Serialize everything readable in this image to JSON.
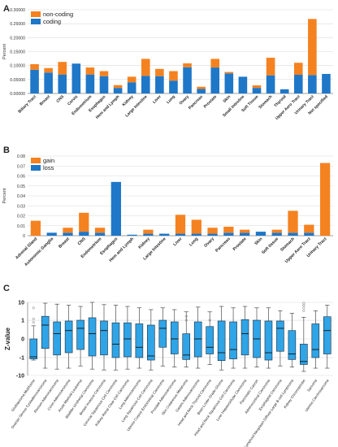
{
  "panels": [
    {
      "letter": "A"
    },
    {
      "letter": "B"
    },
    {
      "letter": "C"
    }
  ],
  "colors": {
    "orange": "#f58220",
    "blue": "#1f77c8",
    "box": "#2fa4e7",
    "axis": "#888888",
    "grid": "#d9d9d9"
  },
  "chart_data": [
    {
      "type": "bar",
      "stacked": true,
      "ylabel": "Percent",
      "ylim": [
        0,
        0.3
      ],
      "yticks": [
        "0.00000",
        "0.05000",
        "0.10000",
        "0.15000",
        "0.20000",
        "0.25000",
        "0.30000"
      ],
      "legend_position": "top-left",
      "grid": true,
      "categories": [
        "Biliary Tract",
        "Breast",
        "CNS",
        "Cervix",
        "Endometrium",
        "Esophagus",
        "Hem and Lymph",
        "Kidney",
        "Large Intestine",
        "Liver",
        "Lung",
        "Ovary",
        "Pancreas",
        "Prostate",
        "Skin",
        "Small Intestine",
        "Soft Tissue",
        "Stomach",
        "Thyroid",
        "Upper Aero Tract",
        "Urinary Tract",
        "Not specified"
      ],
      "series": [
        {
          "name": "coding",
          "color": "#1f77c8",
          "values": [
            0.085,
            0.075,
            0.068,
            0.107,
            0.068,
            0.062,
            0.02,
            0.04,
            0.063,
            0.062,
            0.046,
            0.094,
            0.016,
            0.093,
            0.072,
            0.06,
            0.02,
            0.065,
            0.015,
            0.067,
            0.066,
            0.07
          ]
        },
        {
          "name": "non-coding",
          "color": "#f58220",
          "values": [
            0.02,
            0.016,
            0.045,
            0.0,
            0.025,
            0.018,
            0.01,
            0.02,
            0.061,
            0.026,
            0.034,
            0.014,
            0.008,
            0.031,
            0.005,
            0.0,
            0.009,
            0.063,
            0.0,
            0.043,
            0.201,
            0.0
          ]
        }
      ]
    },
    {
      "type": "bar",
      "stacked": true,
      "ylabel": "Percent",
      "ylim": [
        0,
        0.08
      ],
      "yticks": [
        "0",
        "0.005",
        "0.01",
        "0.015",
        "0.02",
        "0.025",
        "0.03",
        "0.035",
        "0.04",
        "0.045",
        "0.05",
        "0.055",
        "0.06",
        "0.065",
        "0.07",
        "0.075",
        "0.08"
      ],
      "yticks_shown": [
        "0",
        "0.01",
        "0.02",
        "0.03",
        "0.04",
        "0.05",
        "0.06",
        "0.07",
        "0.08"
      ],
      "legend_position": "top-left",
      "grid": true,
      "categories": [
        "Adrenal Gland",
        "Autonomic Ganglia",
        "Breast",
        "CNS",
        "Endometrium",
        "Esophagus",
        "Hem and Lymph",
        "Kidney",
        "Large Intestine",
        "Liver",
        "Lung",
        "Ovary",
        "Pancreas",
        "Prostate",
        "Skin",
        "Soft tissue",
        "Stomach",
        "Upper Aero Tract",
        "Urinary Tract"
      ],
      "series": [
        {
          "name": "loss",
          "color": "#1f77c8",
          "values": [
            0.0,
            0.003,
            0.003,
            0.004,
            0.003,
            0.054,
            0.001,
            0.002,
            0.002,
            0.002,
            0.002,
            0.002,
            0.003,
            0.003,
            0.004,
            0.003,
            0.003,
            0.003,
            0.0
          ]
        },
        {
          "name": "gain",
          "color": "#f58220",
          "values": [
            0.015,
            0.0,
            0.005,
            0.019,
            0.005,
            0.0,
            0.0,
            0.004,
            0.0,
            0.019,
            0.014,
            0.006,
            0.006,
            0.003,
            0.0,
            0.003,
            0.022,
            0.008,
            0.073
          ]
        }
      ]
    },
    {
      "type": "boxplot",
      "ylabel": "Z-value",
      "yscale": "symlog",
      "yticks": [
        "10",
        "1",
        "0",
        "-1",
        "-10"
      ],
      "ytick_values": [
        10,
        1,
        0,
        -1,
        -10
      ],
      "ylim": [
        -10,
        10
      ],
      "grid": true,
      "categories": [
        "Glioblastoma Multiforme",
        "Ovarian Serous Cystadenocarcinoma",
        "Rectum Adenocarcinoma",
        "Colon Adenocarcinoma",
        "Acute Myeloid Leukemia",
        "Bladder Urothelial Carcinoma",
        "Breast Invasive Carcinoma",
        "Cervical Squamous Cell Carcinoma",
        "Kidney Renal Clear Cell Carcinoma",
        "Lung Adenocarcinoma",
        "Lung Squamous Cell Carcinoma",
        "Uterine Corpus Endometrial Carcinoma",
        "Prostate Adenocarcinoma",
        "Skin Cutaneous Melanoma",
        "Gastric Adenocarcinoma",
        "Head and Neck Thyroid Carcinoma",
        "Brain Lower Grade Glioma",
        "Head and Neck Squamous Cell Carcinoma",
        "Liver Hepatocellular Carcinoma",
        "Pancreatic Cancer",
        "Adrenocortical Carcinoma",
        "Esophageal Carcinoma",
        "Lymphoid Neoplasm Diffuse Large B-cell Lymphoma",
        "Kidney Chromophobe",
        "Sarcoma",
        "Uterine Carcinosarcoma"
      ],
      "boxes": [
        {
          "min": -1.4,
          "q1": -1.2,
          "median": -0.9,
          "q3": 0.0,
          "max": 0.45,
          "outliers": [
            0.75,
            1.2,
            5.0
          ]
        },
        {
          "min": -4.0,
          "q1": -0.25,
          "median": 0.5,
          "q3": 1.7,
          "max": 9.0,
          "outliers": []
        },
        {
          "min": -4.5,
          "q1": -0.7,
          "median": 0.1,
          "q3": 0.8,
          "max": 8.0,
          "outliers": []
        },
        {
          "min": -4.0,
          "q1": -0.5,
          "median": 0.2,
          "q3": 0.9,
          "max": 7.0,
          "outliers": []
        },
        {
          "min": -3.0,
          "q1": -0.3,
          "median": 0.3,
          "q3": 1.0,
          "max": 6.0,
          "outliers": []
        },
        {
          "min": -4.5,
          "q1": -0.8,
          "median": 0.1,
          "q3": 1.4,
          "max": 10.0,
          "outliers": []
        },
        {
          "min": -5.0,
          "q1": -0.7,
          "median": 0.2,
          "q3": 0.9,
          "max": 7.5,
          "outliers": []
        },
        {
          "min": -5.0,
          "q1": -1.0,
          "median": -0.1,
          "q3": 0.7,
          "max": 7.0,
          "outliers": []
        },
        {
          "min": -4.5,
          "q1": -0.9,
          "median": 0.0,
          "q3": 0.7,
          "max": 6.0,
          "outliers": []
        },
        {
          "min": -4.0,
          "q1": -1.0,
          "median": -0.2,
          "q3": 0.6,
          "max": 5.0,
          "outliers": []
        },
        {
          "min": -5.0,
          "q1": -1.4,
          "median": -0.8,
          "q3": 0.5,
          "max": 4.0,
          "outliers": []
        },
        {
          "min": -3.0,
          "q1": -0.2,
          "median": 0.3,
          "q3": 1.0,
          "max": 5.0,
          "outliers": []
        },
        {
          "min": -3.5,
          "q1": -0.6,
          "median": 0.0,
          "q3": 0.8,
          "max": 4.0,
          "outliers": []
        },
        {
          "min": -3.5,
          "q1": -1.3,
          "median": -0.7,
          "q3": 0.1,
          "max": 3.0,
          "outliers": [
            1.0,
            1.7
          ]
        },
        {
          "min": -4.0,
          "q1": -0.9,
          "median": 0.0,
          "q3": 0.8,
          "max": 5.5,
          "outliers": []
        },
        {
          "min": -2.5,
          "q1": -0.6,
          "median": -0.2,
          "q3": 0.4,
          "max": 3.0,
          "outliers": [
            1.0
          ]
        },
        {
          "min": -5.0,
          "q1": -1.5,
          "median": -0.5,
          "q3": 0.9,
          "max": 6.0,
          "outliers": []
        },
        {
          "min": -4.0,
          "q1": -1.2,
          "median": -0.3,
          "q3": 0.8,
          "max": 5.0,
          "outliers": []
        },
        {
          "min": -4.0,
          "q1": -0.7,
          "median": 0.1,
          "q3": 1.1,
          "max": 6.0,
          "outliers": []
        },
        {
          "min": -3.5,
          "q1": -1.0,
          "median": 0.0,
          "q3": 1.0,
          "max": 5.0,
          "outliers": []
        },
        {
          "min": -4.0,
          "q1": -1.4,
          "median": -0.5,
          "q3": 0.9,
          "max": 5.0,
          "outliers": []
        },
        {
          "min": -3.0,
          "q1": -0.4,
          "median": 0.3,
          "q3": 0.9,
          "max": 3.5,
          "outliers": []
        },
        {
          "min": -3.5,
          "q1": -1.3,
          "median": -0.6,
          "q3": 0.2,
          "max": 2.5,
          "outliers": []
        },
        {
          "min": -6.0,
          "q1": -2.5,
          "median": -1.7,
          "q3": -0.1,
          "max": 1.5,
          "outliers": [
            3.5,
            5.0,
            7.0,
            9.0
          ]
        },
        {
          "min": -4.0,
          "q1": -1.0,
          "median": -0.3,
          "q3": 0.6,
          "max": 3.5,
          "outliers": []
        },
        {
          "min": -4.0,
          "q1": -0.6,
          "median": 0.2,
          "q3": 1.6,
          "max": 7.0,
          "outliers": []
        }
      ]
    }
  ]
}
